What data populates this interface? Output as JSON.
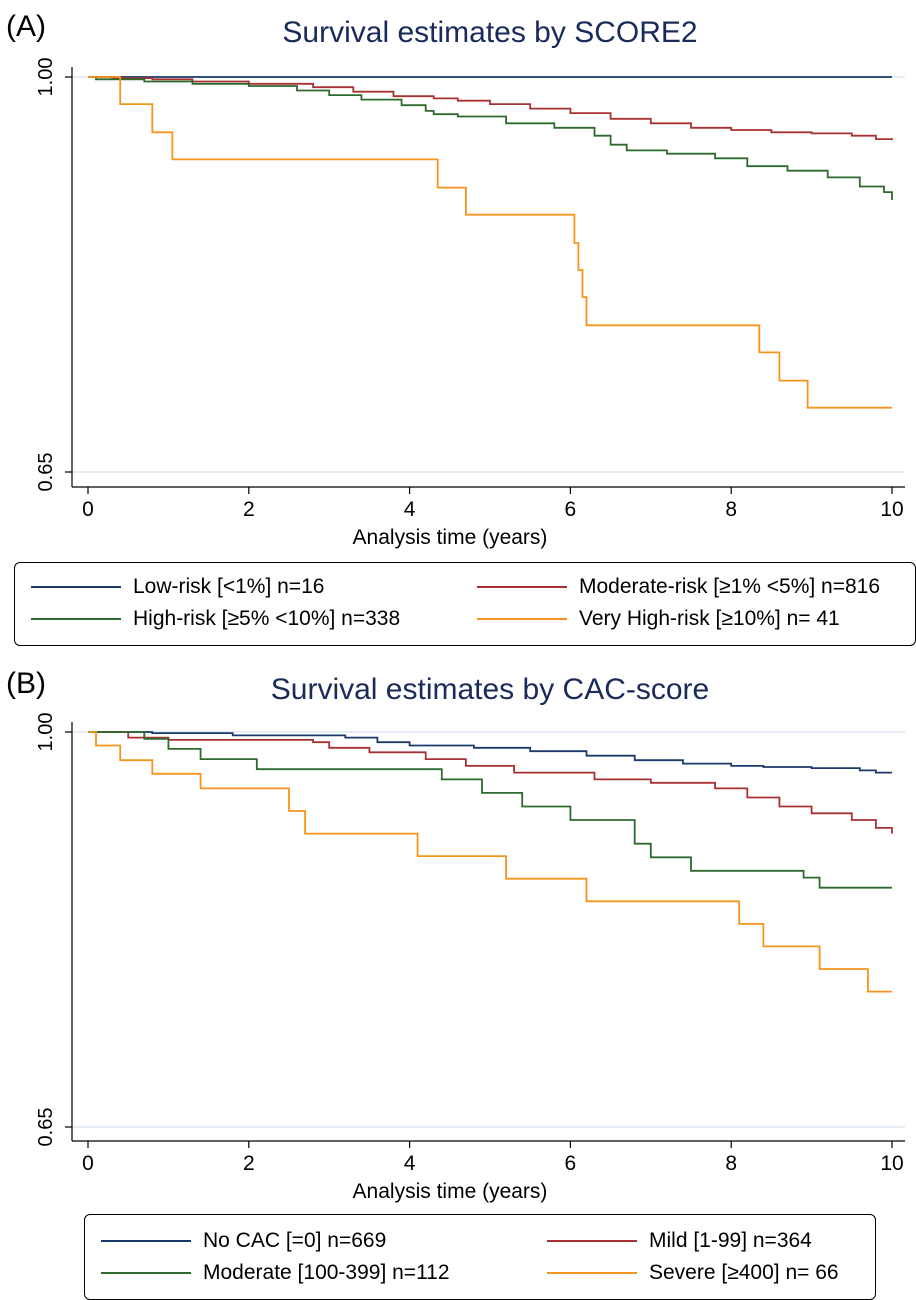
{
  "panels": [
    {
      "letter": "(A)",
      "title": "Survival estimates by SCORE2",
      "xlabel": "Analysis time (years)"
    },
    {
      "letter": "(B)",
      "title": "Survival estimates by CAC-score",
      "xlabel": "Analysis time (years)"
    }
  ],
  "chart_data": [
    {
      "type": "line",
      "title": "Survival estimates by SCORE2",
      "xlabel": "Analysis time (years)",
      "ylabel": "",
      "xlim": [
        0,
        10
      ],
      "ylim": [
        0.65,
        1.0
      ],
      "xticks": [
        0,
        2,
        4,
        6,
        8,
        10
      ],
      "xtick_labels": [
        "0",
        "2",
        "4",
        "6",
        "8",
        "10"
      ],
      "yticks": [
        0.65,
        1.0
      ],
      "ytick_labels": [
        "0.65",
        "1.00"
      ],
      "grid": "horizontal at y-ticks",
      "legend_position": "bottom",
      "series": [
        {
          "name": "Low-risk [<1%] n=16",
          "color": "#1a3a6b",
          "x": [
            0,
            10
          ],
          "y": [
            1.0,
            1.0
          ]
        },
        {
          "name": "Moderate-risk [≥1% <5%] n=816",
          "color": "#a83232",
          "x": [
            0,
            0.3,
            0.8,
            1.3,
            2.0,
            2.8,
            3.3,
            3.8,
            4.3,
            4.6,
            5.0,
            5.5,
            6.0,
            6.5,
            7.0,
            7.5,
            8.0,
            8.5,
            9.0,
            9.5,
            9.8,
            10.0
          ],
          "y": [
            1.0,
            0.999,
            0.998,
            0.996,
            0.994,
            0.991,
            0.987,
            0.983,
            0.981,
            0.979,
            0.976,
            0.972,
            0.968,
            0.963,
            0.959,
            0.955,
            0.953,
            0.951,
            0.95,
            0.948,
            0.945,
            0.944
          ]
        },
        {
          "name": "High-risk [≥5% <10%] n=338",
          "color": "#2e6a2e",
          "x": [
            0,
            0.1,
            0.7,
            1.3,
            2.0,
            2.6,
            3.0,
            3.4,
            3.9,
            4.2,
            4.3,
            4.6,
            5.2,
            5.8,
            6.3,
            6.5,
            6.7,
            7.2,
            7.8,
            8.2,
            8.7,
            9.2,
            9.6,
            9.9,
            10.0
          ],
          "y": [
            1.0,
            0.998,
            0.996,
            0.994,
            0.992,
            0.988,
            0.984,
            0.98,
            0.975,
            0.97,
            0.967,
            0.965,
            0.959,
            0.955,
            0.948,
            0.94,
            0.935,
            0.932,
            0.928,
            0.921,
            0.917,
            0.911,
            0.903,
            0.898,
            0.891
          ]
        },
        {
          "name": "Very High-risk [≥10%] n= 41",
          "color": "#f7941d",
          "x": [
            0,
            0.4,
            0.8,
            1.05,
            4.35,
            4.7,
            6.05,
            6.1,
            6.15,
            6.2,
            8.35,
            8.6,
            8.95,
            10.0
          ],
          "y": [
            1.0,
            0.976,
            0.951,
            0.927,
            0.902,
            0.878,
            0.853,
            0.829,
            0.805,
            0.78,
            0.756,
            0.731,
            0.707,
            0.707
          ]
        }
      ]
    },
    {
      "type": "line",
      "title": "Survival estimates by CAC-score",
      "xlabel": "Analysis time (years)",
      "ylabel": "",
      "xlim": [
        0,
        10
      ],
      "ylim": [
        0.65,
        1.0
      ],
      "xticks": [
        0,
        2,
        4,
        6,
        8,
        10
      ],
      "xtick_labels": [
        "0",
        "2",
        "4",
        "6",
        "8",
        "10"
      ],
      "yticks": [
        0.65,
        1.0
      ],
      "ytick_labels": [
        "0.65",
        "1.00"
      ],
      "grid": "horizontal at y-ticks",
      "legend_position": "bottom",
      "series": [
        {
          "name": "No CAC [=0] n=669",
          "color": "#1a3a6b",
          "x": [
            0,
            0.8,
            1.8,
            3.2,
            3.6,
            4.0,
            4.8,
            5.5,
            6.2,
            6.8,
            7.4,
            8.0,
            8.4,
            9.0,
            9.6,
            9.8,
            10.0
          ],
          "y": [
            1.0,
            0.999,
            0.997,
            0.995,
            0.991,
            0.988,
            0.986,
            0.983,
            0.979,
            0.975,
            0.972,
            0.97,
            0.969,
            0.968,
            0.966,
            0.964,
            0.964
          ]
        },
        {
          "name": "Mild [1-99] n=364",
          "color": "#a83232",
          "x": [
            0,
            0.5,
            1.0,
            2.8,
            3.0,
            3.5,
            4.2,
            4.7,
            5.3,
            6.3,
            7.0,
            7.8,
            8.2,
            8.6,
            9.0,
            9.5,
            9.8,
            10.0
          ],
          "y": [
            1.0,
            0.995,
            0.993,
            0.991,
            0.986,
            0.982,
            0.976,
            0.97,
            0.964,
            0.958,
            0.955,
            0.95,
            0.942,
            0.934,
            0.928,
            0.922,
            0.915,
            0.91
          ]
        },
        {
          "name": "Moderate [100-399] n=112",
          "color": "#2e6a2e",
          "x": [
            0,
            0.7,
            1.0,
            1.4,
            2.1,
            4.4,
            4.9,
            5.4,
            6.0,
            6.8,
            7.0,
            7.5,
            8.9,
            9.1,
            10.0
          ],
          "y": [
            1.0,
            0.994,
            0.985,
            0.976,
            0.967,
            0.958,
            0.946,
            0.934,
            0.922,
            0.901,
            0.889,
            0.877,
            0.871,
            0.862,
            0.862
          ]
        },
        {
          "name": "Severe [≥400] n= 66",
          "color": "#f7941d",
          "x": [
            0,
            0.1,
            0.4,
            0.8,
            1.4,
            2.5,
            2.7,
            4.1,
            5.2,
            6.2,
            8.1,
            8.4,
            9.1,
            9.7,
            10.0
          ],
          "y": [
            1.0,
            0.988,
            0.975,
            0.963,
            0.95,
            0.93,
            0.91,
            0.89,
            0.87,
            0.85,
            0.83,
            0.81,
            0.79,
            0.77,
            0.77
          ]
        }
      ]
    }
  ]
}
